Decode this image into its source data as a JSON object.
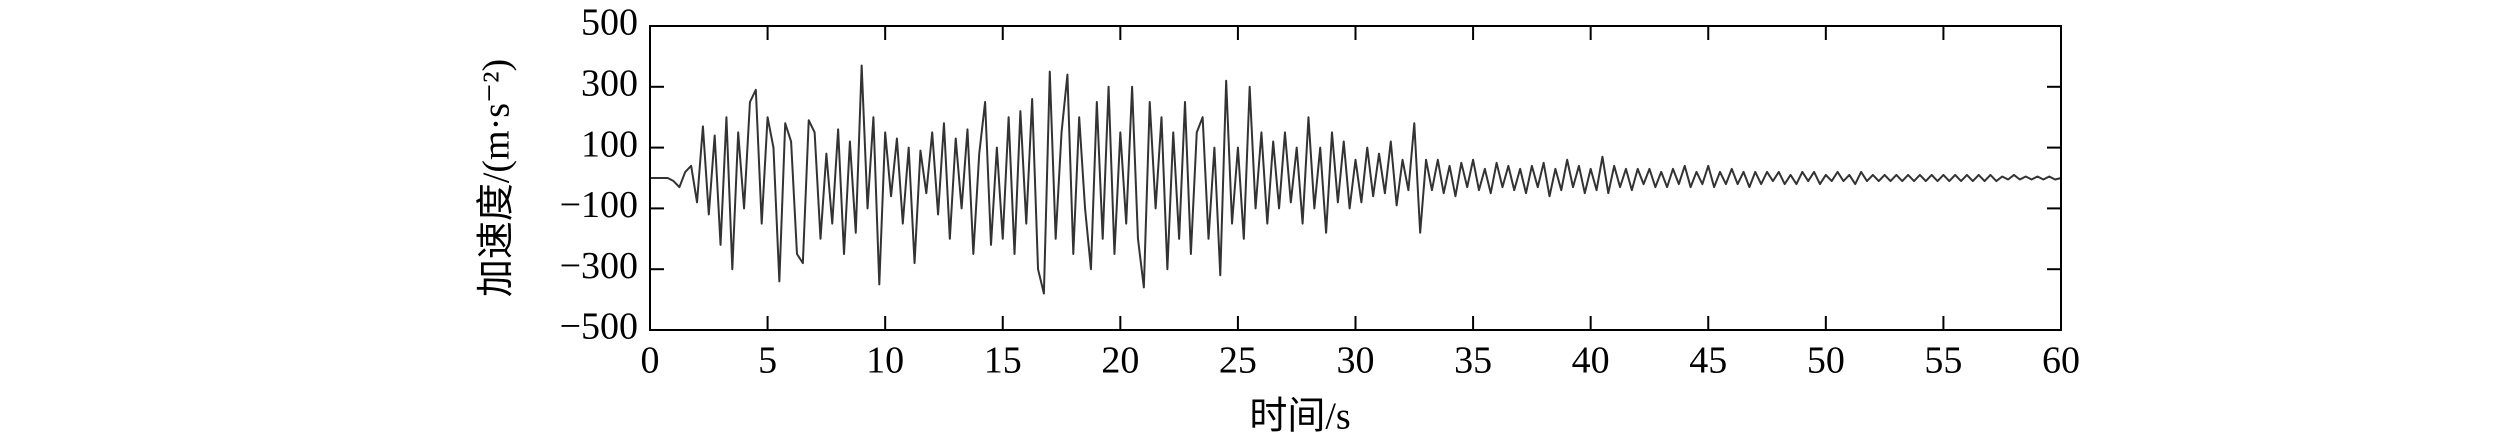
{
  "chart_data": {
    "type": "line",
    "xlabel": "时间/s",
    "ylabel": "加速度/(m·s⁻²)",
    "xlim": [
      0,
      60
    ],
    "ylim": [
      -500,
      500
    ],
    "xticks": [
      0,
      5,
      10,
      15,
      20,
      25,
      30,
      35,
      40,
      45,
      50,
      55,
      60
    ],
    "yticks": [
      {
        "value": -500,
        "label": "−500"
      },
      {
        "value": -300,
        "label": "−300"
      },
      {
        "value": -100,
        "label": "−100"
      },
      100,
      300,
      500
    ],
    "grid": false,
    "x": [
      0,
      0.25,
      0.5,
      0.75,
      1,
      1.25,
      1.5,
      1.75,
      2,
      2.25,
      2.5,
      2.75,
      3,
      3.25,
      3.5,
      3.75,
      4,
      4.25,
      4.5,
      4.75,
      5,
      5.25,
      5.5,
      5.75,
      6,
      6.25,
      6.5,
      6.75,
      7,
      7.25,
      7.5,
      7.75,
      8,
      8.25,
      8.5,
      8.75,
      9,
      9.25,
      9.5,
      9.75,
      10,
      10.25,
      10.5,
      10.75,
      11,
      11.25,
      11.5,
      11.75,
      12,
      12.25,
      12.5,
      12.75,
      13,
      13.25,
      13.5,
      13.75,
      14,
      14.25,
      14.5,
      14.75,
      15,
      15.25,
      15.5,
      15.75,
      16,
      16.25,
      16.5,
      16.75,
      17,
      17.25,
      17.5,
      17.75,
      18,
      18.25,
      18.5,
      18.75,
      19,
      19.25,
      19.5,
      19.75,
      20,
      20.25,
      20.5,
      20.75,
      21,
      21.25,
      21.5,
      21.75,
      22,
      22.25,
      22.5,
      22.75,
      23,
      23.25,
      23.5,
      23.75,
      24,
      24.25,
      24.5,
      24.75,
      25,
      25.25,
      25.5,
      25.75,
      26,
      26.25,
      26.5,
      26.75,
      27,
      27.25,
      27.5,
      27.75,
      28,
      28.25,
      28.5,
      28.75,
      29,
      29.25,
      29.5,
      29.75,
      30,
      30.25,
      30.5,
      30.75,
      31,
      31.25,
      31.5,
      31.75,
      32,
      32.25,
      32.5,
      32.75,
      33,
      33.25,
      33.5,
      33.75,
      34,
      34.25,
      34.5,
      34.75,
      35,
      35.25,
      35.5,
      35.75,
      36,
      36.25,
      36.5,
      36.75,
      37,
      37.25,
      37.5,
      37.75,
      38,
      38.25,
      38.5,
      38.75,
      39,
      39.25,
      39.5,
      39.75,
      40,
      40.25,
      40.5,
      40.75,
      41,
      41.25,
      41.5,
      41.75,
      42,
      42.25,
      42.5,
      42.75,
      43,
      43.25,
      43.5,
      43.75,
      44,
      44.25,
      44.5,
      44.75,
      45,
      45.25,
      45.5,
      45.75,
      46,
      46.25,
      46.5,
      46.75,
      47,
      47.25,
      47.5,
      47.75,
      48,
      48.25,
      48.5,
      48.75,
      49,
      49.25,
      49.5,
      49.75,
      50,
      50.25,
      50.5,
      50.75,
      51,
      51.25,
      51.5,
      51.75,
      52,
      52.25,
      52.5,
      52.75,
      53,
      53.25,
      53.5,
      53.75,
      54,
      54.25,
      54.5,
      54.75,
      55,
      55.25,
      55.5,
      55.75,
      56,
      56.25,
      56.5,
      56.75,
      57,
      57.25,
      57.5,
      57.75,
      58,
      58.25,
      58.5,
      58.75,
      59,
      59.25,
      59.5,
      59.75,
      60
    ],
    "series": [
      {
        "color": "#333333",
        "values": [
          0,
          0,
          0,
          0,
          -10,
          -30,
          20,
          40,
          -80,
          170,
          -120,
          140,
          -220,
          200,
          -300,
          150,
          -100,
          250,
          290,
          -150,
          200,
          100,
          -340,
          180,
          120,
          -250,
          -280,
          190,
          150,
          -200,
          80,
          -150,
          160,
          -250,
          120,
          -180,
          370,
          -100,
          200,
          -350,
          150,
          -60,
          130,
          -150,
          100,
          -280,
          90,
          -50,
          150,
          -120,
          180,
          -200,
          130,
          -100,
          160,
          -250,
          80,
          250,
          -220,
          100,
          -200,
          200,
          -250,
          220,
          -150,
          260,
          -300,
          -380,
          350,
          -200,
          150,
          340,
          -250,
          200,
          -100,
          -300,
          250,
          -200,
          300,
          -250,
          150,
          -150,
          300,
          -200,
          -360,
          250,
          -100,
          200,
          -300,
          150,
          -200,
          250,
          -250,
          150,
          200,
          -200,
          100,
          -320,
          320,
          -150,
          100,
          -200,
          300,
          -100,
          150,
          -150,
          120,
          -100,
          150,
          -80,
          100,
          -150,
          200,
          -100,
          100,
          -180,
          150,
          -80,
          120,
          -100,
          60,
          -80,
          100,
          -60,
          80,
          -50,
          120,
          -90,
          60,
          -40,
          180,
          -180,
          60,
          -40,
          60,
          -50,
          40,
          -60,
          50,
          -30,
          60,
          -40,
          30,
          -50,
          50,
          -30,
          40,
          -40,
          30,
          -50,
          40,
          -30,
          50,
          -60,
          30,
          -40,
          60,
          -30,
          40,
          -50,
          30,
          -40,
          70,
          -50,
          40,
          -30,
          30,
          -40,
          30,
          -20,
          30,
          -30,
          20,
          -30,
          30,
          -20,
          40,
          -30,
          20,
          -20,
          40,
          -30,
          20,
          -20,
          30,
          -20,
          20,
          -30,
          20,
          -20,
          20,
          -10,
          20,
          -20,
          10,
          -20,
          20,
          -10,
          20,
          -20,
          10,
          -10,
          20,
          -10,
          10,
          -20,
          20,
          -10,
          10,
          -10,
          10,
          -10,
          10,
          -10,
          10,
          -10,
          10,
          -10,
          10,
          -10,
          10,
          -10,
          10,
          -10,
          10,
          -10,
          10,
          -10,
          10,
          -10,
          5,
          -5,
          10,
          -5,
          5,
          -5,
          5,
          -5,
          5,
          -5,
          0
        ]
      }
    ]
  }
}
